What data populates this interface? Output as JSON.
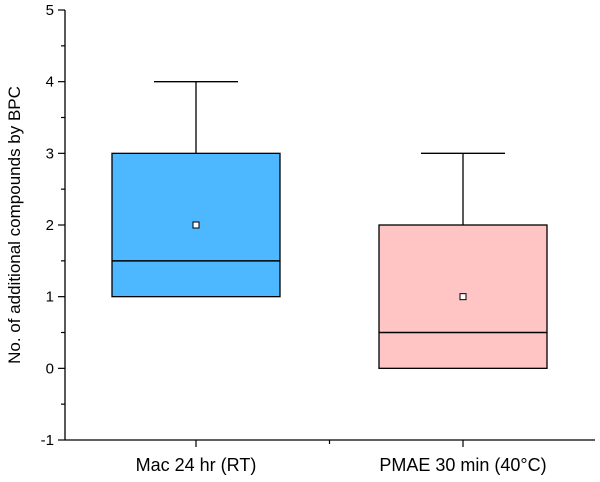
{
  "chart_data": {
    "type": "box",
    "title": "",
    "xlabel": "",
    "ylabel": "No. of additional compounds by BPC",
    "ylim": [
      -1,
      5
    ],
    "yticks": [
      "-1",
      "0",
      "1",
      "2",
      "3",
      "4",
      "5"
    ],
    "grid": false,
    "categories": [
      "Mac 24 hr (RT)",
      "PMAE 30 min (40°C)"
    ],
    "boxes": [
      {
        "category": "Mac 24 hr (RT)",
        "whisker_low": 1,
        "q1": 1,
        "median": 1.5,
        "q3": 3,
        "whisker_high": 4,
        "mean": 2,
        "color": "#4db8ff"
      },
      {
        "category": "PMAE 30 min (40°C)",
        "whisker_low": 0,
        "q1": 0,
        "median": 0.5,
        "q3": 2,
        "whisker_high": 3,
        "mean": 1,
        "color": "#ffc4c4"
      }
    ]
  }
}
